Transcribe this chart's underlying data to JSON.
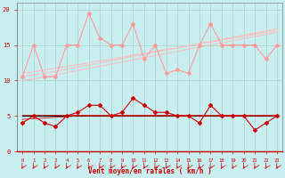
{
  "hours": [
    0,
    1,
    2,
    3,
    4,
    5,
    6,
    7,
    8,
    9,
    10,
    11,
    12,
    13,
    14,
    15,
    16,
    17,
    18,
    19,
    20,
    21,
    22,
    23
  ],
  "rafales": [
    10.5,
    15,
    10.5,
    10.5,
    15,
    15,
    19.5,
    16,
    15,
    15,
    18,
    13,
    15,
    11,
    11.5,
    11,
    15,
    18,
    15,
    15,
    15,
    15,
    13,
    15
  ],
  "trend_r1": [
    10.0,
    10.2,
    10.5,
    10.8,
    11.1,
    11.4,
    11.7,
    12.0,
    12.3,
    12.6,
    12.9,
    13.2,
    13.5,
    13.8,
    14.1,
    14.4,
    14.7,
    15.0,
    15.3,
    15.6,
    15.9,
    16.2,
    16.5,
    16.8
  ],
  "trend_r2": [
    10.5,
    10.8,
    11.0,
    11.3,
    11.6,
    11.9,
    12.2,
    12.5,
    12.8,
    13.1,
    13.4,
    13.7,
    14.0,
    14.3,
    14.6,
    14.9,
    15.2,
    15.5,
    15.8,
    16.1,
    16.4,
    16.7,
    17.0,
    17.3
  ],
  "trend_r3": [
    11.0,
    11.2,
    11.5,
    11.7,
    12.0,
    12.2,
    12.5,
    12.8,
    13.0,
    13.3,
    13.6,
    13.8,
    14.1,
    14.4,
    14.6,
    14.9,
    15.2,
    15.4,
    15.7,
    16.0,
    16.2,
    16.5,
    16.8,
    17.0
  ],
  "vent_moyen": [
    4.0,
    5.0,
    4.0,
    3.5,
    5.0,
    5.5,
    6.5,
    6.5,
    5.0,
    5.5,
    7.5,
    6.5,
    5.5,
    5.5,
    5.0,
    5.0,
    4.0,
    6.5,
    5.0,
    5.0,
    5.0,
    3.0,
    4.0,
    5.0
  ],
  "trend_v1": [
    5.0,
    5.0,
    5.0,
    5.0,
    5.0,
    5.0,
    5.0,
    5.0,
    5.0,
    5.0,
    5.0,
    5.0,
    5.0,
    5.0,
    5.0,
    5.0,
    5.0,
    5.0,
    5.0,
    5.0,
    5.0,
    5.0,
    5.0,
    5.0
  ],
  "trend_v2": [
    4.5,
    4.6,
    4.7,
    4.8,
    4.9,
    5.0,
    5.0,
    5.0,
    5.0,
    5.0,
    5.0,
    5.0,
    5.0,
    5.0,
    5.0,
    5.0,
    5.0,
    5.0,
    5.0,
    5.0,
    5.0,
    5.0,
    5.0,
    5.0
  ],
  "trend_v3": [
    5.2,
    5.2,
    5.2,
    5.2,
    5.2,
    5.2,
    5.2,
    5.2,
    5.2,
    5.2,
    5.2,
    5.2,
    5.2,
    5.2,
    5.2,
    5.2,
    5.2,
    5.2,
    5.2,
    5.2,
    5.2,
    5.2,
    5.2,
    5.2
  ],
  "bg_color": "#c8eef0",
  "grid_color": "#aacccc",
  "color_rafales": "#ff9999",
  "color_trend_r": "#ffbbbb",
  "color_vent": "#cc0000",
  "color_trend_v": "#dd1111",
  "color_black": "#000000",
  "xlabel": "Vent moyen/en rafales ( km/h )",
  "tick_color": "#cc0000",
  "ylim": [
    0,
    21
  ],
  "xlim": [
    -0.5,
    23.5
  ]
}
